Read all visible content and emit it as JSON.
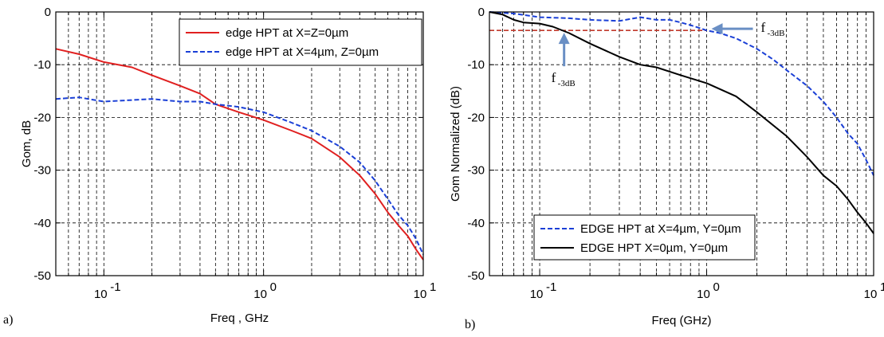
{
  "chart_data": [
    {
      "type": "line",
      "panel_label": "a)",
      "xlabel": "Freq , GHz",
      "ylabel": "Gom, dB",
      "xscale": "log",
      "xlim": [
        0.05,
        10
      ],
      "ylim": [
        -50,
        0
      ],
      "xticks": [
        0.1,
        1,
        10
      ],
      "xtick_labels": [
        {
          "base": "10",
          "exp": "-1"
        },
        {
          "base": "10",
          "exp": "0"
        },
        {
          "base": "10",
          "exp": "1"
        }
      ],
      "yticks": [
        0,
        -10,
        -20,
        -30,
        -40,
        -50
      ],
      "ytick_labels": [
        "0",
        "-10",
        "-20",
        "-30",
        "-40",
        "-50"
      ],
      "grid": true,
      "legend": "top-right",
      "series": [
        {
          "name": "edge HPT at X=Z=0µm",
          "color": "#e02020",
          "style": "solid",
          "x": [
            0.05,
            0.07,
            0.1,
            0.15,
            0.2,
            0.3,
            0.4,
            0.5,
            0.7,
            1.0,
            1.5,
            2.0,
            3.0,
            4.0,
            5.0,
            6.0,
            7.0,
            8.0,
            9.0,
            10.0
          ],
          "y": [
            -7,
            -8,
            -9.5,
            -10.5,
            -12,
            -14,
            -15.5,
            -17.5,
            -19,
            -20.5,
            -22.5,
            -24,
            -27.5,
            -31,
            -34.5,
            -38,
            -40.5,
            -42.5,
            -45,
            -47
          ]
        },
        {
          "name": "edge HPT at X=4µm, Z=0µm",
          "color": "#1a3fd6",
          "style": "dashed",
          "x": [
            0.05,
            0.07,
            0.1,
            0.2,
            0.3,
            0.4,
            0.5,
            0.7,
            1.0,
            1.5,
            2.0,
            3.0,
            4.0,
            5.0,
            6.0,
            7.0,
            8.0,
            9.0,
            10.0
          ],
          "y": [
            -16.5,
            -16.2,
            -17,
            -16.5,
            -17,
            -17,
            -17.5,
            -18,
            -19,
            -21,
            -22.5,
            -25.5,
            -28.5,
            -32,
            -35.5,
            -38.5,
            -40.5,
            -43,
            -46
          ]
        }
      ]
    },
    {
      "type": "line",
      "panel_label": "b)",
      "xlabel": "Freq (GHz)",
      "ylabel": "Gom Normalized (dB)",
      "xscale": "log",
      "xlim": [
        0.05,
        10
      ],
      "ylim": [
        -50,
        0
      ],
      "xticks": [
        0.1,
        1,
        10
      ],
      "xtick_labels": [
        {
          "base": "10",
          "exp": "-1"
        },
        {
          "base": "10",
          "exp": "0"
        },
        {
          "base": "10",
          "exp": "1"
        }
      ],
      "yticks": [
        0,
        -10,
        -20,
        -30,
        -40,
        -50
      ],
      "ytick_labels": [
        "0",
        "-10",
        "-20",
        "-30",
        "-40",
        "-50"
      ],
      "grid": true,
      "legend": "bottom-left",
      "reference_line": {
        "y": -3.5,
        "color": "#c0392b",
        "style": "dashed"
      },
      "annotations": [
        {
          "base": "f",
          "sub": "-3dB",
          "x": 1.0,
          "y": -3.5
        },
        {
          "base": "f",
          "sub": "-3dB",
          "x": 0.14,
          "y": -3.5
        }
      ],
      "series": [
        {
          "name": "EDGE  HPT at X=4µm, Y=0µm",
          "color": "#1a3fd6",
          "style": "dashed",
          "x": [
            0.05,
            0.07,
            0.1,
            0.15,
            0.2,
            0.3,
            0.4,
            0.5,
            0.6,
            0.7,
            0.8,
            0.9,
            1.0,
            1.2,
            1.5,
            2.0,
            2.5,
            3.0,
            4.0,
            5.0,
            6.0,
            7.0,
            8.0,
            9.0,
            10.0
          ],
          "y": [
            0,
            -0.3,
            -1,
            -1.2,
            -1.5,
            -1.7,
            -1,
            -1.5,
            -1.5,
            -2,
            -2.5,
            -3,
            -3.5,
            -4,
            -5,
            -7,
            -9,
            -11,
            -14,
            -17,
            -20,
            -23,
            -25,
            -28,
            -31
          ]
        },
        {
          "name": "EDGE  HPT X=0µm, Y=0µm",
          "color": "#000000",
          "style": "solid",
          "x": [
            0.05,
            0.06,
            0.07,
            0.08,
            0.1,
            0.12,
            0.15,
            0.2,
            0.3,
            0.4,
            0.5,
            0.7,
            1.0,
            1.5,
            2.0,
            3.0,
            4.0,
            5.0,
            6.0,
            7.0,
            8.0,
            9.0,
            10.0
          ],
          "y": [
            0,
            -0.5,
            -1.5,
            -2,
            -2.2,
            -2.8,
            -4,
            -6,
            -8.5,
            -10,
            -10.5,
            -12,
            -13.5,
            -16,
            -19,
            -23.5,
            -27.5,
            -31,
            -33,
            -35.5,
            -38,
            -40,
            -42
          ]
        }
      ]
    }
  ]
}
